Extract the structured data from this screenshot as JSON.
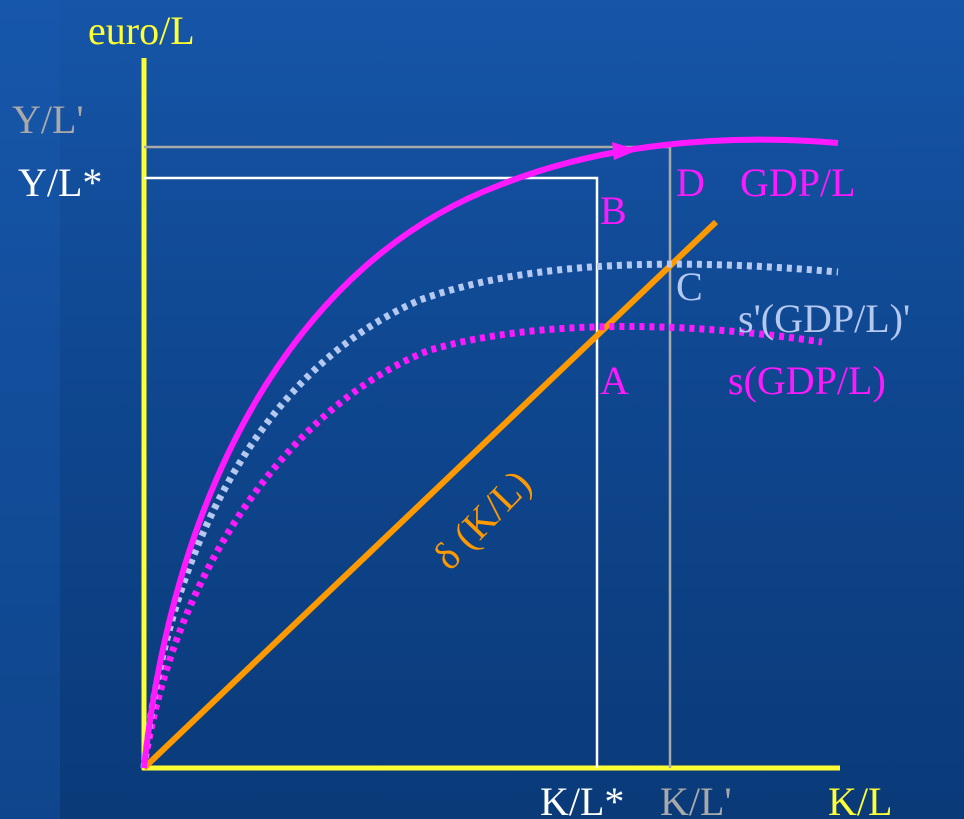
{
  "diagram": {
    "y_axis_label": "euro/L",
    "x_axis_label": "K/L",
    "y_ticks": {
      "y_l_prime": "Y/L'",
      "y_l_star": "Y/L*"
    },
    "x_ticks": {
      "k_l_star": "K/L*",
      "k_l_prime": "K/L'"
    },
    "points": {
      "a": "A",
      "b": "B",
      "c": "C",
      "d": "D"
    },
    "curves": {
      "gdp": "GDP/L",
      "saving_new": "s'(GDP/L)'",
      "saving_old": "s(GDP/L)",
      "depreciation": "δ (K/L)"
    }
  },
  "colors": {
    "axis": "#ffff33",
    "gdp": "#ff19ff",
    "saving_new": "#b4c8f0",
    "saving_old": "#ff19ff",
    "depreciation": "#ff9900",
    "guide_star": "#ffffff",
    "guide_prime": "#a9a9a9",
    "text_white": "#ffffff",
    "text_grey": "#a9a9a9"
  }
}
